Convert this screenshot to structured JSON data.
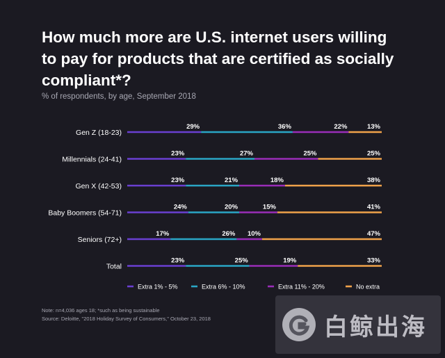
{
  "title": "How much more are U.S. internet users willing to pay for products that are certified as socially compliant*?",
  "subtitle": "% of respondents, by age, September 2018",
  "chart_data": {
    "type": "bar",
    "orientation": "horizontal",
    "stacked": true,
    "title": "How much more are U.S. internet users willing to pay for products that are certified as socially compliant*?",
    "subtitle": "% of respondents, by age, September 2018",
    "categories": [
      "Gen Z (18-23)",
      "Millennials (24-41)",
      "Gen X (42-53)",
      "Baby Boomers (54-71)",
      "Seniors (72+)",
      "Total"
    ],
    "series": [
      {
        "name": "Extra 1% - 5%",
        "color": "#6a3fd1",
        "values": [
          29,
          23,
          23,
          24,
          17,
          23
        ]
      },
      {
        "name": "Extra 6% - 10%",
        "color": "#2aa6c6",
        "values": [
          36,
          27,
          21,
          20,
          26,
          25
        ]
      },
      {
        "name": "Extra 11% - 20%",
        "color": "#9a2db8",
        "values": [
          22,
          25,
          18,
          15,
          10,
          19
        ]
      },
      {
        "name": "No extra",
        "color": "#f0a24a",
        "values": [
          13,
          25,
          38,
          41,
          47,
          33
        ]
      }
    ],
    "value_suffix": "%",
    "xlim": [
      0,
      100
    ],
    "legend_position": "bottom",
    "grid": false
  },
  "footer": {
    "note": "Note: n=4,036 ages 18; *such as being sustainable",
    "source": "Source: Deloitte, \"2018 Holiday Survey of Consumers,\" October 23, 2018"
  },
  "watermark": {
    "text": "白鲸出海",
    "icon": "whale-logo-icon"
  }
}
